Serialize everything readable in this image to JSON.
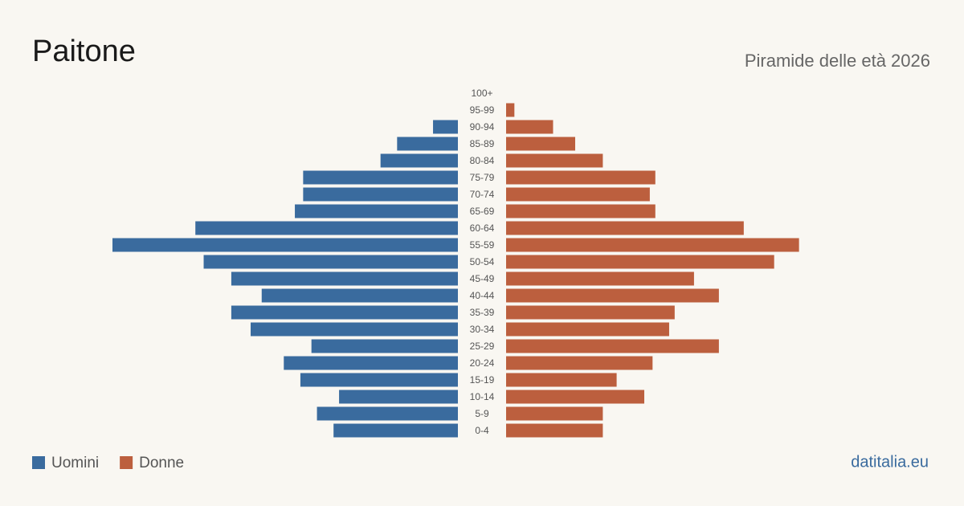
{
  "chart_data": {
    "type": "pyramid",
    "title": "Paitone",
    "subtitle": "Piramide delle età 2026",
    "source": "datitalia.eu",
    "categories": [
      "100+",
      "95-99",
      "90-94",
      "85-89",
      "80-84",
      "75-79",
      "70-74",
      "65-69",
      "60-64",
      "55-59",
      "50-54",
      "45-49",
      "40-44",
      "35-39",
      "30-34",
      "25-29",
      "20-24",
      "15-19",
      "10-14",
      "5-9",
      "0-4"
    ],
    "series": [
      {
        "name": "Uomini",
        "color": "#3a6b9e",
        "values": [
          0,
          0,
          9,
          22,
          28,
          56,
          56,
          59,
          95,
          125,
          92,
          82,
          71,
          82,
          75,
          53,
          63,
          57,
          43,
          51,
          45
        ]
      },
      {
        "name": "Donne",
        "color": "#bc5f3e",
        "values": [
          0,
          3,
          17,
          25,
          35,
          54,
          52,
          54,
          86,
          106,
          97,
          68,
          77,
          61,
          59,
          77,
          53,
          40,
          50,
          35,
          35
        ]
      }
    ],
    "xlim": [
      0,
      125
    ]
  }
}
